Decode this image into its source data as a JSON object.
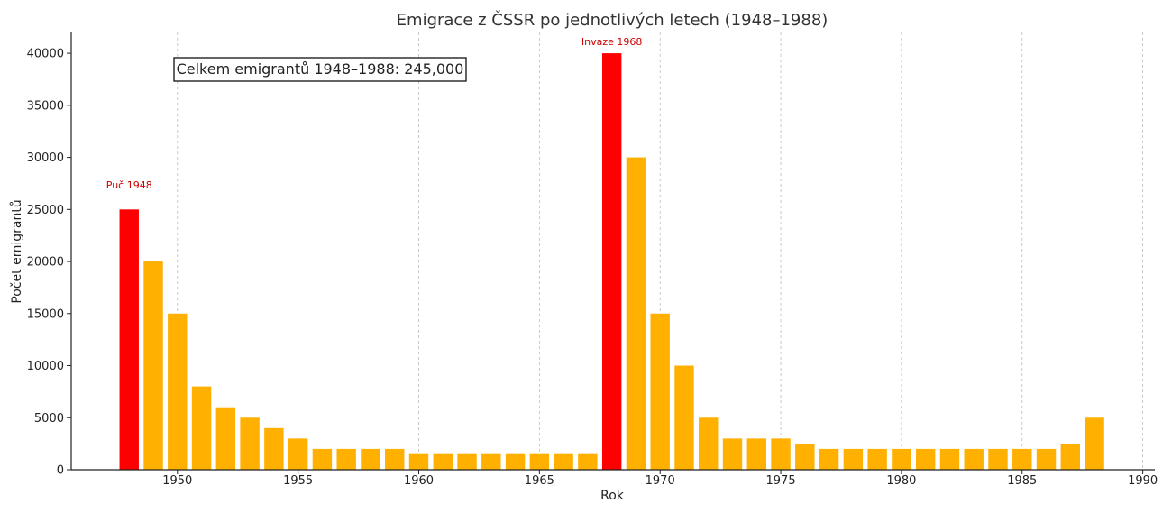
{
  "chart_data": {
    "type": "bar",
    "title": "Emigrace z ČSSR po jednotlivých letech (1948–1988)",
    "xlabel": "Rok",
    "ylabel": "Počet emigrantů",
    "xlim": [
      1945.6,
      1990.5
    ],
    "ylim": [
      0,
      42000
    ],
    "xticks": [
      1950,
      1955,
      1960,
      1965,
      1970,
      1975,
      1980,
      1985,
      1990
    ],
    "yticks": [
      0,
      5000,
      10000,
      15000,
      20000,
      25000,
      30000,
      35000,
      40000
    ],
    "grid": "vertical dashed",
    "x": [
      1948,
      1949,
      1950,
      1951,
      1952,
      1953,
      1954,
      1955,
      1956,
      1957,
      1958,
      1959,
      1960,
      1961,
      1962,
      1963,
      1964,
      1965,
      1966,
      1967,
      1968,
      1969,
      1970,
      1971,
      1972,
      1973,
      1974,
      1975,
      1976,
      1977,
      1978,
      1979,
      1980,
      1981,
      1982,
      1983,
      1984,
      1985,
      1986,
      1987,
      1988
    ],
    "values": [
      25000,
      20000,
      15000,
      8000,
      6000,
      5000,
      4000,
      3000,
      2000,
      2000,
      2000,
      2000,
      1500,
      1500,
      1500,
      1500,
      1500,
      1500,
      1500,
      1500,
      40000,
      30000,
      15000,
      10000,
      5000,
      3000,
      3000,
      3000,
      2500,
      2000,
      2000,
      2000,
      2000,
      2000,
      2000,
      2000,
      2000,
      2000,
      2000,
      2500,
      5000
    ],
    "highlight_years": [
      1948,
      1968
    ],
    "colors": {
      "bar": "#FFB000",
      "highlight": "#FF0000",
      "annotation": "#CC0000",
      "grid": "#BBBBBB",
      "axis": "#222222"
    },
    "annotations": [
      {
        "text": "Puč 1948",
        "x": 1948,
        "y": 27000
      },
      {
        "text": "Invaze 1968",
        "x": 1968,
        "y": 40800
      }
    ],
    "total_label": "Celkem emigrantů 1948–1988: 245,000"
  }
}
